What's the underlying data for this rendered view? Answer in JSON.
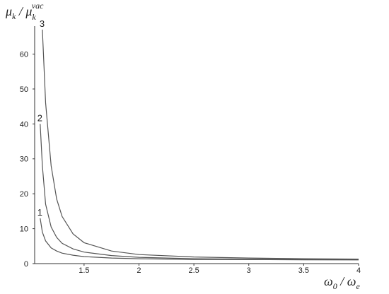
{
  "chart_data": {
    "type": "line",
    "y_label": [
      "μ",
      "k",
      " / μ",
      "k",
      "vac"
    ],
    "x_label": [
      "ω",
      "0",
      " / ω",
      "e"
    ],
    "x": [
      1.1,
      1.12,
      1.15,
      1.2,
      1.25,
      1.3,
      1.4,
      1.5,
      1.75,
      2,
      2.5,
      3,
      3.5,
      4
    ],
    "series": [
      {
        "name": "1",
        "color": "#555555",
        "values": [
          13,
          9,
          6.5,
          4.5,
          3.6,
          3.0,
          2.4,
          2.0,
          1.6,
          1.4,
          1.2,
          1.15,
          1.1,
          1.05
        ]
      },
      {
        "name": "2",
        "color": "#555555",
        "values": [
          40,
          28,
          17,
          10.5,
          7.5,
          5.8,
          4.2,
          3.3,
          2.3,
          1.8,
          1.4,
          1.3,
          1.2,
          1.15
        ]
      },
      {
        "name": "3",
        "color": "#555555",
        "values": [
          null,
          67,
          46,
          28,
          18.5,
          13.5,
          8.5,
          6.0,
          3.6,
          2.6,
          1.9,
          1.6,
          1.4,
          1.3
        ]
      }
    ],
    "xlim": [
      1.05,
      4.0
    ],
    "ylim": [
      0,
      68
    ],
    "xticks": [
      1.5,
      2,
      2.5,
      3,
      3.5,
      4
    ],
    "yticks": [
      0,
      10,
      20,
      30,
      40,
      50,
      60
    ]
  }
}
